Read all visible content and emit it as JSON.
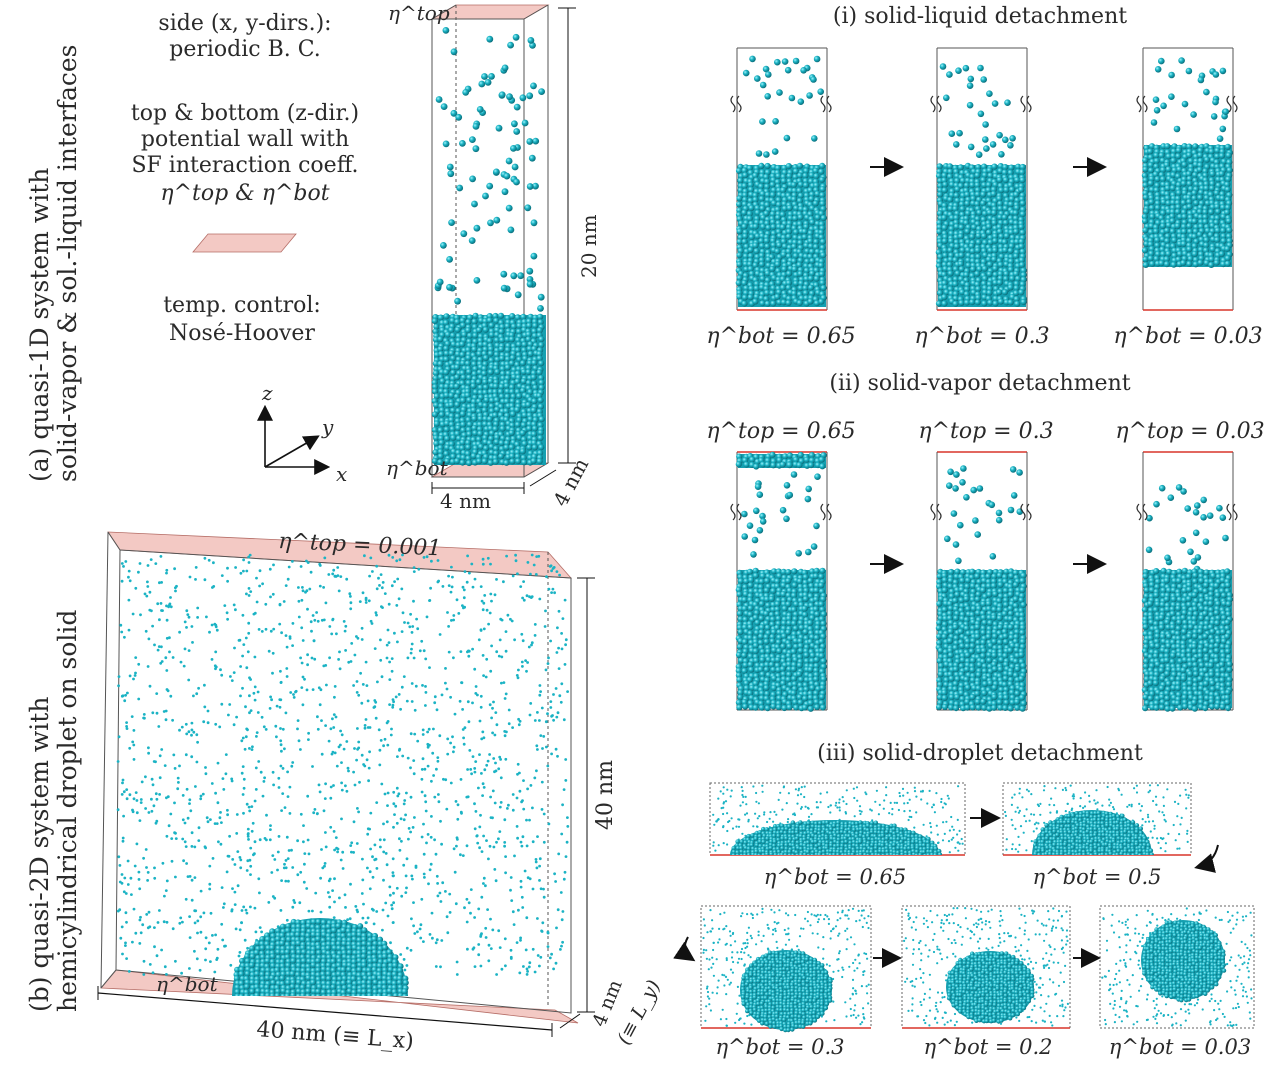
{
  "panel_a": {
    "title_line1": "(a) quasi-1D system with",
    "title_line2": "solid-vapor & sol.-liquid interfaces",
    "side_line1": "side (x, y-dirs.):",
    "side_line2": "periodic B. C.",
    "wall_line1": "top & bottom (z-dir.)",
    "wall_line2": "potential wall with",
    "wall_line3": "SF interaction coeff.",
    "wall_line4": "η^top & η^bot",
    "temp_line1": "temp. control:",
    "temp_line2": "Nosé-Hoover",
    "axis_z": "z",
    "axis_y": "y",
    "axis_x": "x",
    "eta_top_label": "η^top",
    "eta_bot_label": "η^bot",
    "dim_height": "20 nm",
    "dim_width": "4 nm",
    "dim_depth": "4 nm"
  },
  "panel_b": {
    "title_line1": "(b) quasi-2D system with",
    "title_line2": "hemicylindrical droplet on solid",
    "eta_top": "η^top = 0.001",
    "eta_bot": "η^bot",
    "dim_height": "40 nm",
    "dim_width": "40 nm (≡ L_x)",
    "dim_depth_1": "4 nm",
    "dim_depth_2": "(≡ L_y)"
  },
  "panel_i": {
    "title": "(i) solid-liquid detachment",
    "labels": [
      "η^bot = 0.65",
      "η^bot = 0.3",
      "η^bot = 0.03"
    ]
  },
  "panel_ii": {
    "title": "(ii) solid-vapor detachment",
    "labels": [
      "η^top = 0.65",
      "η^top = 0.3",
      "η^top = 0.03"
    ]
  },
  "panel_iii": {
    "title": "(iii) solid-droplet detachment",
    "labels": [
      "η^bot = 0.65",
      "η^bot = 0.5",
      "η^bot = 0.3",
      "η^bot = 0.2",
      "η^bot = 0.03"
    ]
  },
  "colors": {
    "particle": "#1bb3c4",
    "particle_dark": "#0a7e8c",
    "wall": "#f3c9c4",
    "wall_edge": "#d8352a"
  }
}
